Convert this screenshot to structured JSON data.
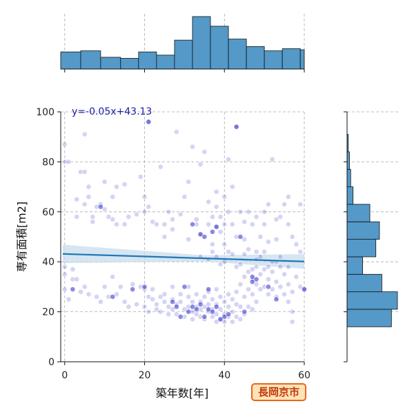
{
  "chart_data": {
    "type": "scatter",
    "xlabel": "築年数[年]",
    "ylabel": "専有面積[m2]",
    "xlim": [
      -1,
      60
    ],
    "ylim": [
      0,
      100
    ],
    "xticks": [
      "0",
      "20",
      "40",
      "60"
    ],
    "yticks": [
      "0",
      "20",
      "40",
      "60",
      "80",
      "100"
    ],
    "grid": true,
    "annotation": "y=-0.05x+43.13",
    "regression": {
      "slope": -0.05,
      "intercept": 43.13,
      "x_range": [
        -0.5,
        60
      ]
    },
    "points": [
      [
        0,
        87
      ],
      [
        0,
        80
      ],
      [
        1,
        80
      ],
      [
        0,
        35
      ],
      [
        0,
        29
      ],
      [
        1,
        25
      ],
      [
        2,
        37
      ],
      [
        3,
        65
      ],
      [
        3,
        58
      ],
      [
        4,
        76
      ],
      [
        5,
        76
      ],
      [
        5,
        91
      ],
      [
        5,
        63
      ],
      [
        6,
        70
      ],
      [
        6,
        66
      ],
      [
        7,
        58
      ],
      [
        7,
        56
      ],
      [
        8,
        62
      ],
      [
        9,
        63
      ],
      [
        10,
        61
      ],
      [
        10,
        72
      ],
      [
        11,
        58
      ],
      [
        12,
        66
      ],
      [
        12,
        57
      ],
      [
        13,
        70
      ],
      [
        13,
        55
      ],
      [
        15,
        71
      ],
      [
        15,
        55
      ],
      [
        16,
        58
      ],
      [
        18,
        59
      ],
      [
        19,
        74
      ],
      [
        20,
        66
      ],
      [
        20,
        60
      ],
      [
        21,
        96
      ],
      [
        21,
        62
      ],
      [
        22,
        56
      ],
      [
        23,
        55
      ],
      [
        24,
        78
      ],
      [
        25,
        55
      ],
      [
        25,
        50
      ],
      [
        26,
        60
      ],
      [
        27,
        57
      ],
      [
        27,
        53
      ],
      [
        28,
        92
      ],
      [
        29,
        59
      ],
      [
        30,
        66
      ],
      [
        31,
        72
      ],
      [
        31,
        49
      ],
      [
        32,
        86
      ],
      [
        33,
        57
      ],
      [
        33,
        55
      ],
      [
        34,
        79
      ],
      [
        34,
        51
      ],
      [
        35,
        84
      ],
      [
        36,
        64
      ],
      [
        36,
        55
      ],
      [
        37,
        58
      ],
      [
        37,
        47
      ],
      [
        38,
        68
      ],
      [
        38,
        62
      ],
      [
        38,
        54
      ],
      [
        39,
        58
      ],
      [
        39,
        52
      ],
      [
        40,
        66
      ],
      [
        40,
        55
      ],
      [
        40,
        47
      ],
      [
        41,
        60
      ],
      [
        41,
        81
      ],
      [
        42,
        70
      ],
      [
        42,
        55
      ],
      [
        43,
        94
      ],
      [
        43,
        50
      ],
      [
        44,
        60
      ],
      [
        45,
        56
      ],
      [
        45,
        49
      ],
      [
        46,
        60
      ],
      [
        47,
        55
      ],
      [
        48,
        58
      ],
      [
        48,
        44
      ],
      [
        49,
        50
      ],
      [
        50,
        60
      ],
      [
        50,
        55
      ],
      [
        51,
        63
      ],
      [
        51,
        48
      ],
      [
        52,
        81
      ],
      [
        53,
        57
      ],
      [
        53,
        49
      ],
      [
        54,
        58
      ],
      [
        55,
        63
      ],
      [
        56,
        66
      ],
      [
        56,
        55
      ],
      [
        57,
        50
      ],
      [
        58,
        47
      ],
      [
        59,
        63
      ],
      [
        59,
        44
      ],
      [
        0,
        38
      ],
      [
        2,
        33
      ],
      [
        3,
        33
      ],
      [
        4,
        28
      ],
      [
        5,
        30
      ],
      [
        6,
        27
      ],
      [
        8,
        26
      ],
      [
        9,
        24
      ],
      [
        10,
        30
      ],
      [
        11,
        26
      ],
      [
        12,
        34
      ],
      [
        13,
        27
      ],
      [
        14,
        30
      ],
      [
        15,
        24
      ],
      [
        16,
        22
      ],
      [
        17,
        31
      ],
      [
        18,
        23
      ],
      [
        19,
        30
      ],
      [
        20,
        29
      ],
      [
        20,
        22
      ],
      [
        21,
        26
      ],
      [
        21,
        20
      ],
      [
        22,
        29
      ],
      [
        22,
        25
      ],
      [
        23,
        23
      ],
      [
        23,
        21
      ],
      [
        24,
        26
      ],
      [
        24,
        20
      ],
      [
        25,
        27
      ],
      [
        25,
        24
      ],
      [
        26,
        22
      ],
      [
        26,
        19
      ],
      [
        27,
        30
      ],
      [
        27,
        25
      ],
      [
        27,
        21
      ],
      [
        28,
        23
      ],
      [
        28,
        19
      ],
      [
        29,
        27
      ],
      [
        29,
        24
      ],
      [
        30,
        21
      ],
      [
        30,
        18
      ],
      [
        31,
        30
      ],
      [
        31,
        26
      ],
      [
        31,
        22
      ],
      [
        32,
        24
      ],
      [
        32,
        20
      ],
      [
        32,
        17
      ],
      [
        33,
        27
      ],
      [
        33,
        22
      ],
      [
        33,
        19
      ],
      [
        34,
        24
      ],
      [
        34,
        21
      ],
      [
        34,
        18
      ],
      [
        35,
        26
      ],
      [
        35,
        22
      ],
      [
        35,
        17
      ],
      [
        36,
        28
      ],
      [
        36,
        23
      ],
      [
        36,
        20
      ],
      [
        37,
        25
      ],
      [
        37,
        21
      ],
      [
        37,
        18
      ],
      [
        38,
        29
      ],
      [
        38,
        23
      ],
      [
        38,
        19
      ],
      [
        38,
        16
      ],
      [
        39,
        26
      ],
      [
        39,
        21
      ],
      [
        39,
        17
      ],
      [
        40,
        24
      ],
      [
        40,
        19
      ],
      [
        40,
        16
      ],
      [
        41,
        27
      ],
      [
        41,
        22
      ],
      [
        41,
        18
      ],
      [
        42,
        25
      ],
      [
        42,
        20
      ],
      [
        42,
        16
      ],
      [
        43,
        28
      ],
      [
        43,
        23
      ],
      [
        43,
        18
      ],
      [
        44,
        31
      ],
      [
        44,
        22
      ],
      [
        44,
        17
      ],
      [
        45,
        34
      ],
      [
        45,
        26
      ],
      [
        45,
        19
      ],
      [
        46,
        36
      ],
      [
        46,
        29
      ],
      [
        46,
        22
      ],
      [
        47,
        33
      ],
      [
        47,
        27
      ],
      [
        47,
        21
      ],
      [
        48,
        38
      ],
      [
        48,
        31
      ],
      [
        48,
        24
      ],
      [
        49,
        35
      ],
      [
        49,
        29
      ],
      [
        50,
        37
      ],
      [
        50,
        30
      ],
      [
        51,
        33
      ],
      [
        51,
        27
      ],
      [
        52,
        36
      ],
      [
        52,
        29
      ],
      [
        53,
        40
      ],
      [
        53,
        32
      ],
      [
        53,
        26
      ],
      [
        54,
        38
      ],
      [
        54,
        30
      ],
      [
        55,
        35
      ],
      [
        55,
        27
      ],
      [
        56,
        31
      ],
      [
        56,
        24
      ],
      [
        57,
        28
      ],
      [
        57,
        20
      ],
      [
        57,
        16
      ],
      [
        58,
        34
      ],
      [
        59,
        30
      ],
      [
        60,
        29
      ],
      [
        34,
        42
      ],
      [
        36,
        41
      ],
      [
        38,
        42
      ],
      [
        40,
        40
      ],
      [
        42,
        43
      ],
      [
        44,
        39
      ],
      [
        46,
        45
      ],
      [
        48,
        41
      ],
      [
        50,
        44
      ],
      [
        52,
        40
      ],
      [
        54,
        42
      ],
      [
        56,
        38
      ],
      [
        37,
        44
      ],
      [
        39,
        39
      ],
      [
        41,
        44
      ],
      [
        43,
        38
      ],
      [
        45,
        43
      ],
      [
        47,
        37
      ],
      [
        49,
        42
      ],
      [
        51,
        38
      ]
    ],
    "dark_points": [
      [
        9,
        62
      ],
      [
        21,
        96
      ],
      [
        32,
        55
      ],
      [
        34,
        51
      ],
      [
        35,
        50
      ],
      [
        37,
        52
      ],
      [
        38,
        54
      ],
      [
        43,
        94
      ],
      [
        44,
        50
      ],
      [
        20,
        30
      ],
      [
        27,
        24
      ],
      [
        31,
        20
      ],
      [
        32,
        22
      ],
      [
        33,
        21
      ],
      [
        34,
        23
      ],
      [
        35,
        18
      ],
      [
        36,
        21
      ],
      [
        37,
        20
      ],
      [
        38,
        22
      ],
      [
        39,
        17
      ],
      [
        40,
        18
      ],
      [
        41,
        19
      ],
      [
        30,
        30
      ],
      [
        47,
        34
      ],
      [
        47,
        32
      ],
      [
        48,
        33
      ],
      [
        51,
        30
      ],
      [
        53,
        25
      ],
      [
        60,
        29
      ],
      [
        2,
        29
      ],
      [
        12,
        26
      ],
      [
        17,
        29
      ],
      [
        28,
        22
      ],
      [
        29,
        18
      ],
      [
        36,
        29
      ],
      [
        45,
        20
      ]
    ],
    "x_hist": {
      "bin_edges": [
        -1,
        4,
        9,
        14,
        18.5,
        23,
        27.5,
        32,
        36.5,
        41,
        45.5,
        50,
        54.5,
        59,
        63
      ],
      "counts": [
        16,
        17,
        11,
        10,
        16,
        13,
        27,
        49,
        40,
        28,
        21,
        17,
        19,
        18
      ]
    },
    "y_hist": {
      "bin_edges": [
        14,
        21,
        28,
        35,
        42,
        49,
        56,
        63,
        70,
        77,
        84,
        91,
        98
      ],
      "counts": [
        37,
        42,
        29,
        13,
        24,
        27,
        19,
        5,
        3,
        2,
        1,
        0
      ]
    },
    "colors": {
      "point": "#2a2ac8",
      "hist": "#5499c7",
      "line": "#1f77b4",
      "band": "#c7dcec",
      "annotation": "#1a1aa8"
    }
  },
  "badge": "長岡京市"
}
